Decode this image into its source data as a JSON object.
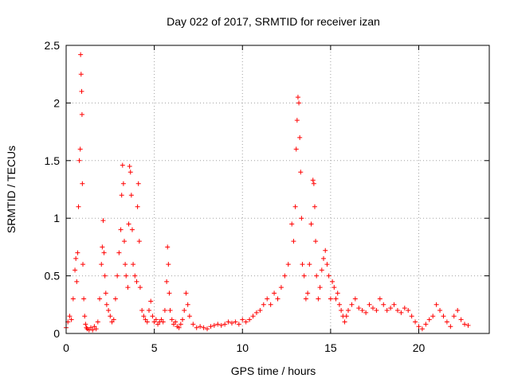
{
  "chart_data": {
    "type": "scatter",
    "title": "Day 022 of 2017, SRMTID for receiver izan",
    "xlabel": "GPS time / hours",
    "ylabel": "SRMTID / TECUs",
    "xlim": [
      0,
      24
    ],
    "ylim": [
      0,
      2.5
    ],
    "xticks": [
      0,
      5,
      10,
      15,
      20
    ],
    "yticks": [
      0,
      0.5,
      1,
      1.5,
      2,
      2.5
    ],
    "xtick_labels": [
      "0",
      "5",
      "10",
      "15",
      "20"
    ],
    "ytick_labels": [
      "0",
      "0.5",
      "1",
      "1.5",
      "2",
      "2.5"
    ],
    "grid": true,
    "marker": "+",
    "color": "#ff0000",
    "series": [
      {
        "name": "SRMTID",
        "x": [
          0.0,
          0.1,
          0.2,
          0.3,
          0.4,
          0.5,
          0.55,
          0.6,
          0.65,
          0.7,
          0.75,
          0.8,
          0.82,
          0.85,
          0.88,
          0.9,
          0.92,
          0.95,
          1.0,
          1.05,
          1.1,
          1.15,
          1.2,
          1.3,
          1.4,
          1.5,
          1.6,
          1.7,
          1.8,
          1.9,
          2.0,
          2.05,
          2.1,
          2.15,
          2.2,
          2.25,
          2.3,
          2.4,
          2.5,
          2.6,
          2.7,
          2.8,
          2.9,
          3.0,
          3.1,
          3.15,
          3.2,
          3.25,
          3.3,
          3.35,
          3.4,
          3.5,
          3.55,
          3.6,
          3.65,
          3.7,
          3.75,
          3.8,
          3.9,
          4.0,
          4.05,
          4.1,
          4.15,
          4.2,
          4.3,
          4.4,
          4.5,
          4.6,
          4.7,
          4.8,
          4.9,
          5.0,
          5.1,
          5.2,
          5.3,
          5.4,
          5.5,
          5.6,
          5.7,
          5.75,
          5.8,
          5.85,
          5.9,
          6.0,
          6.1,
          6.2,
          6.3,
          6.4,
          6.5,
          6.6,
          6.7,
          6.8,
          6.9,
          7.0,
          7.2,
          7.4,
          7.6,
          7.8,
          8.0,
          8.2,
          8.4,
          8.6,
          8.8,
          9.0,
          9.2,
          9.4,
          9.6,
          9.8,
          10.0,
          10.2,
          10.4,
          10.6,
          10.8,
          11.0,
          11.2,
          11.4,
          11.6,
          11.8,
          12.0,
          12.2,
          12.4,
          12.6,
          12.8,
          12.9,
          13.0,
          13.05,
          13.1,
          13.15,
          13.2,
          13.25,
          13.3,
          13.35,
          13.4,
          13.5,
          13.6,
          13.7,
          13.8,
          13.9,
          14.0,
          14.05,
          14.1,
          14.15,
          14.2,
          14.3,
          14.4,
          14.5,
          14.6,
          14.7,
          14.8,
          14.9,
          15.0,
          15.1,
          15.2,
          15.3,
          15.4,
          15.5,
          15.6,
          15.7,
          15.8,
          15.9,
          16.0,
          16.2,
          16.4,
          16.6,
          16.8,
          17.0,
          17.2,
          17.4,
          17.6,
          17.8,
          18.0,
          18.2,
          18.4,
          18.6,
          18.8,
          19.0,
          19.2,
          19.4,
          19.6,
          19.8,
          20.0,
          20.2,
          20.4,
          20.6,
          20.8,
          21.0,
          21.2,
          21.4,
          21.6,
          21.8,
          22.0,
          22.2,
          22.4,
          22.6,
          22.8
        ],
        "y": [
          0.05,
          0.1,
          0.15,
          0.12,
          0.3,
          0.55,
          0.65,
          0.45,
          0.7,
          1.1,
          1.5,
          1.6,
          2.42,
          2.25,
          2.1,
          1.9,
          1.3,
          0.6,
          0.3,
          0.15,
          0.08,
          0.05,
          0.04,
          0.03,
          0.05,
          0.03,
          0.06,
          0.04,
          0.1,
          0.3,
          0.6,
          0.75,
          0.98,
          0.7,
          0.5,
          0.35,
          0.25,
          0.2,
          0.15,
          0.1,
          0.12,
          0.3,
          0.5,
          0.7,
          0.9,
          1.2,
          1.46,
          1.3,
          0.8,
          0.6,
          0.5,
          0.4,
          0.95,
          1.45,
          1.4,
          1.2,
          0.9,
          0.6,
          0.5,
          0.45,
          1.1,
          1.3,
          0.8,
          0.4,
          0.2,
          0.15,
          0.12,
          0.1,
          0.2,
          0.28,
          0.15,
          0.1,
          0.12,
          0.08,
          0.1,
          0.12,
          0.1,
          0.2,
          0.45,
          0.75,
          0.6,
          0.35,
          0.2,
          0.12,
          0.08,
          0.1,
          0.06,
          0.05,
          0.08,
          0.12,
          0.2,
          0.35,
          0.25,
          0.15,
          0.08,
          0.05,
          0.06,
          0.05,
          0.04,
          0.06,
          0.07,
          0.08,
          0.07,
          0.08,
          0.1,
          0.09,
          0.1,
          0.08,
          0.12,
          0.1,
          0.12,
          0.15,
          0.18,
          0.2,
          0.25,
          0.3,
          0.25,
          0.35,
          0.3,
          0.4,
          0.5,
          0.6,
          0.95,
          0.8,
          1.1,
          1.6,
          1.85,
          2.05,
          2.0,
          1.7,
          1.4,
          1.0,
          0.6,
          0.5,
          0.3,
          0.35,
          0.6,
          0.95,
          1.33,
          1.3,
          1.1,
          0.8,
          0.5,
          0.3,
          0.4,
          0.55,
          0.65,
          0.72,
          0.6,
          0.5,
          0.3,
          0.45,
          0.4,
          0.3,
          0.35,
          0.25,
          0.2,
          0.15,
          0.1,
          0.15,
          0.2,
          0.25,
          0.3,
          0.22,
          0.2,
          0.18,
          0.25,
          0.22,
          0.2,
          0.3,
          0.25,
          0.2,
          0.22,
          0.25,
          0.2,
          0.18,
          0.22,
          0.2,
          0.15,
          0.1,
          0.06,
          0.04,
          0.08,
          0.12,
          0.15,
          0.25,
          0.2,
          0.15,
          0.1,
          0.06,
          0.15,
          0.2,
          0.12,
          0.08,
          0.07
        ]
      }
    ]
  }
}
